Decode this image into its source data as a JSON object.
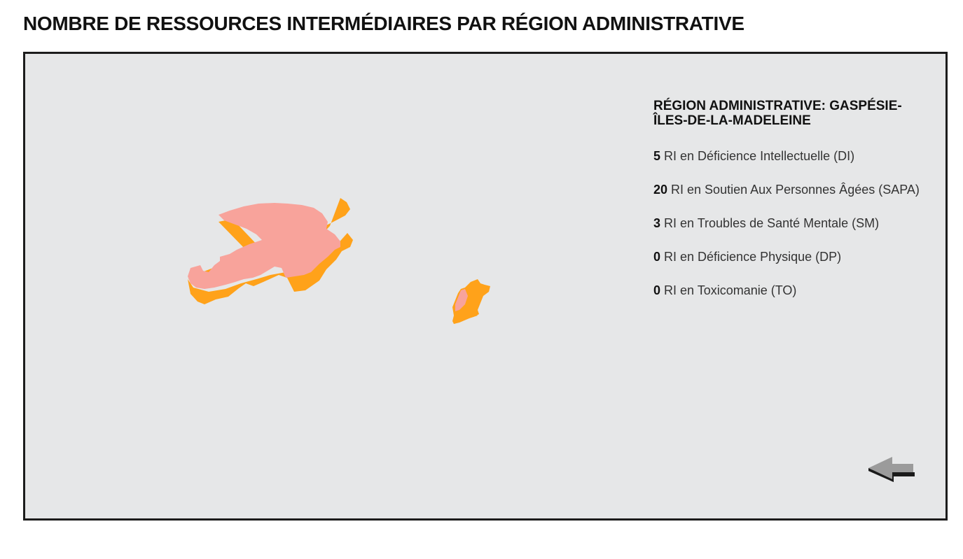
{
  "page": {
    "title": "NOMBRE DE RESSOURCES INTERMÉDIAIRES PAR RÉGION ADMINISTRATIVE"
  },
  "map": {
    "region_colors": {
      "top": "#f8a39b",
      "side": "#ffa21a"
    },
    "background": "#e6e7e8"
  },
  "info": {
    "heading_line1": "RÉGION ADMINISTRATIVE: GASPÉSIE-",
    "heading_line2": "ÎLES-DE-LA-MADELEINE",
    "stats": [
      {
        "count": "5",
        "label": " RI en Déficience Intellectuelle (DI)"
      },
      {
        "count": "20",
        "label": " RI en Soutien Aux Personnes Âgées (SAPA)"
      },
      {
        "count": "3",
        "label": " RI en Troubles de Santé Mentale (SM)"
      },
      {
        "count": "0",
        "label": " RI en Déficience Physique (DP)"
      },
      {
        "count": "0",
        "label": " RI en Toxicomanie (TO)"
      }
    ]
  },
  "controls": {
    "back_icon": "back-arrow-icon"
  }
}
